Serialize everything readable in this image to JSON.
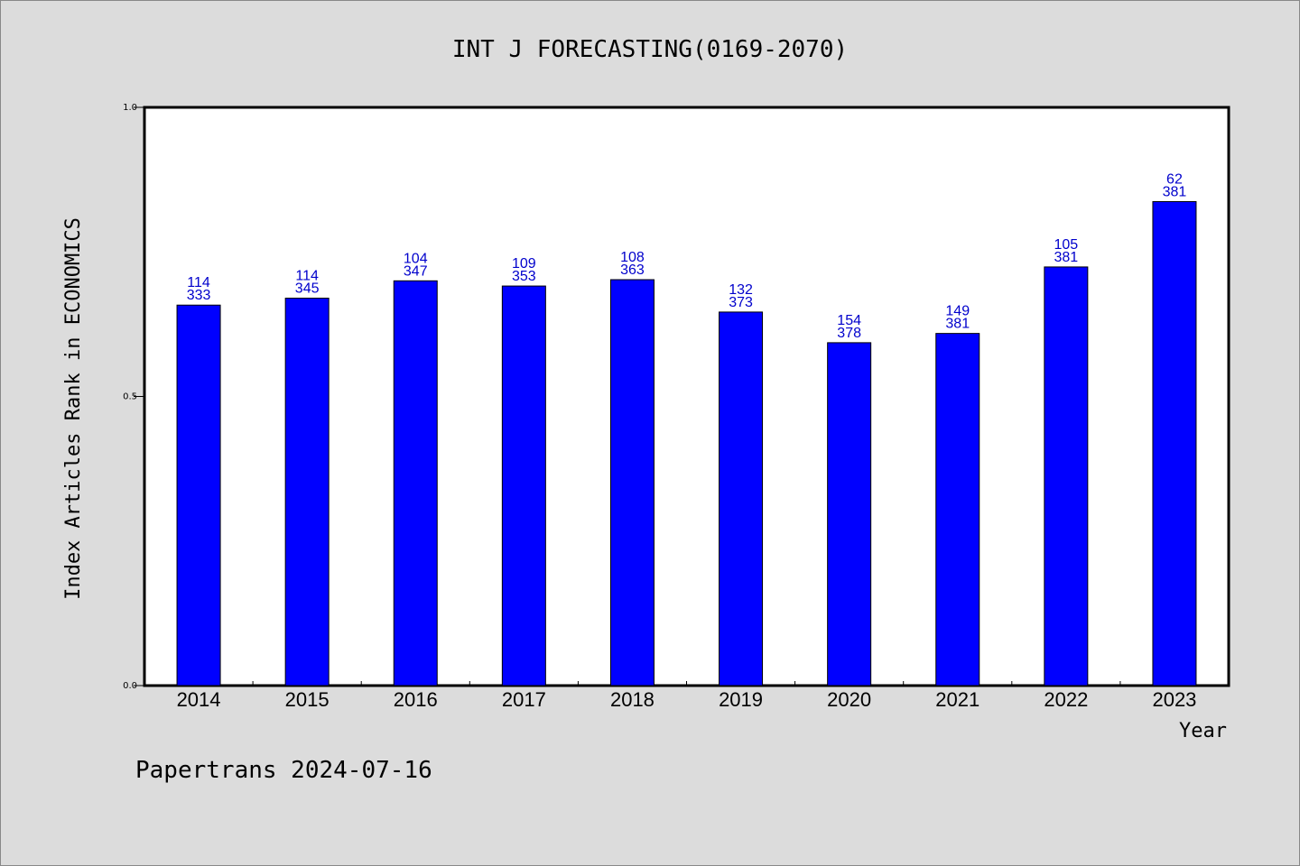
{
  "chart_data": {
    "type": "bar",
    "title": "INT J FORECASTING(0169-2070)",
    "xlabel": "Year",
    "ylabel": "Index Articles Rank in ECONOMICS",
    "ylim": [
      0,
      1
    ],
    "yticks": [
      "1.0",
      "0.5",
      "0.0"
    ],
    "categories": [
      "2014",
      "2015",
      "2016",
      "2017",
      "2018",
      "2019",
      "2020",
      "2021",
      "2022",
      "2023"
    ],
    "values": [
      0.658,
      0.67,
      0.7,
      0.691,
      0.702,
      0.646,
      0.593,
      0.609,
      0.724,
      0.837
    ],
    "ranks": [
      "114",
      "114",
      "104",
      "109",
      "108",
      "132",
      "154",
      "149",
      "105",
      "62"
    ],
    "totals": [
      "333",
      "345",
      "347",
      "353",
      "363",
      "373",
      "378",
      "381",
      "381",
      "381"
    ],
    "bar_color": "#0000ff",
    "label_color": "#0000cc",
    "grid": false
  },
  "footer": "Papertrans 2024-07-16"
}
